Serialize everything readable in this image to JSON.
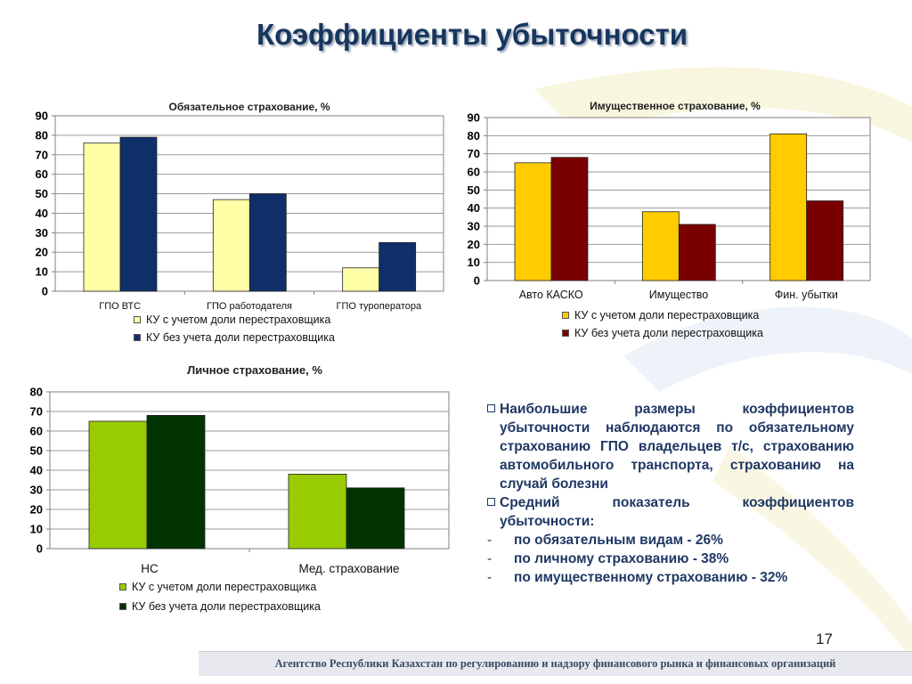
{
  "title": "Коэффициенты убыточности",
  "page_number": "17",
  "footer": "Агентство Республики Казахстан по регулированию и надзору финансового рынка и финансовых организаций",
  "colors": {
    "title": "#17365d",
    "ch1_s1": "#ffffa8",
    "ch1_s2": "#0f2f6b",
    "ch2_s1": "#ffcc00",
    "ch2_s2": "#7a0000",
    "ch3_s1": "#99cc00",
    "ch3_s2": "#003300",
    "text_blue": "#1f3864"
  },
  "bullets": [
    "Наибольшие размеры коэффициентов убыточности наблюдаются по обязательному страхованию ГПО владельцев т/с, страхованию автомобильного транспорта, страхованию на случай болезни",
    "Средний показатель коэффициентов убыточности:"
  ],
  "sub_items": [
    "по обязательным видам - 26%",
    "по личному страхованию - 38%",
    "по имущественному страхованию - 32%"
  ],
  "chart_data": [
    {
      "type": "bar",
      "title": "Обязательное страхование, %",
      "categories": [
        "ГПО ВТС",
        "ГПО работодателя",
        "ГПО туроператора"
      ],
      "series": [
        {
          "name": "КУ с учетом доли перестраховщика",
          "values": [
            76,
            47,
            12
          ]
        },
        {
          "name": "КУ без учета доли перестраховщика",
          "values": [
            79,
            50,
            25
          ]
        }
      ],
      "ylim": [
        0,
        90
      ],
      "yticks": [
        0,
        10,
        20,
        30,
        40,
        50,
        60,
        70,
        80,
        90
      ],
      "grid": true,
      "legend": "bottom"
    },
    {
      "type": "bar",
      "title": "Имущественное страхование, %",
      "categories": [
        "Авто КАСКО",
        "Имущество",
        "Фин. убытки"
      ],
      "series": [
        {
          "name": "КУ с учетом доли перестраховщика",
          "values": [
            65,
            38,
            81
          ]
        },
        {
          "name": "КУ без учета доли перестраховщика",
          "values": [
            68,
            31,
            44
          ]
        }
      ],
      "ylim": [
        0,
        90
      ],
      "yticks": [
        0,
        10,
        20,
        30,
        40,
        50,
        60,
        70,
        80,
        90
      ],
      "grid": true,
      "legend": "bottom"
    },
    {
      "type": "bar",
      "title": "Личное страхование, %",
      "categories": [
        "НС",
        "Мед. страхование"
      ],
      "series": [
        {
          "name": "КУ с учетом доли перестраховщика",
          "values": [
            65,
            38
          ]
        },
        {
          "name": "КУ без учета доли перестраховщика",
          "values": [
            68,
            31
          ]
        }
      ],
      "ylim": [
        0,
        80
      ],
      "yticks": [
        0,
        10,
        20,
        30,
        40,
        50,
        60,
        70,
        80
      ],
      "grid": true,
      "legend": "bottom"
    }
  ]
}
